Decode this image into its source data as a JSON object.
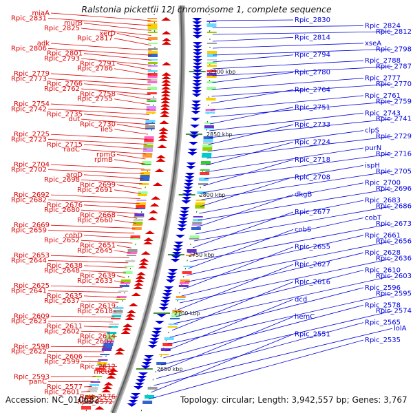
{
  "title": "Ralstonia pickettii 12J chromosome 1, complete sequence",
  "accession": "Accession: NC_010682",
  "summary": "Topology: circular; Length: 3,942,557 bp; Genes: 3,767",
  "colors": {
    "forward": "#dd0000",
    "reverse": "#0000dd",
    "tick": "#006600",
    "backbone": "#888888"
  },
  "kbp_marks": [
    "2900 kbp",
    "2850 kbp",
    "2800 kbp",
    "2750 kbp",
    "2700 kbp",
    "2650 kbp"
  ],
  "left_labels": [
    "miaA",
    "Rpic_2831",
    "murB",
    "Rpic_2825",
    "xerD",
    "Rpic_2817",
    "adk",
    "Rpic_2806",
    "Rpic_2801",
    "Rpic_2793",
    "Rpic_2791",
    "Rpic_2786",
    "Rpic_2779",
    "Rpic_2773",
    "Rpic_2766",
    "Rpic_2762",
    "Rpic_2758",
    "Rpic_2755",
    "Rpic_2754",
    "Rpic_2742",
    "Rpic_2735",
    "dut",
    "Rpic_2730",
    "ileS",
    "Rpic_2725",
    "Rpic_2723",
    "Rpic_2715",
    "radC",
    "rpmG",
    "rpmB",
    "Rpic_2704",
    "Rpic_2702",
    "argD",
    "Rpic_2698",
    "Rpic_2699",
    "Rpic_2691",
    "Rpic_2692",
    "Rpic_2682",
    "Rpic_2676",
    "Rpic_2680",
    "Rpic_2668",
    "Rpic_2660",
    "Rpic_2669",
    "Rpic_2659",
    "cobD",
    "Rpic_2652",
    "Rpic_2651",
    "Rpic_2645",
    "Rpic_2653",
    "Rpic_2644",
    "Rpic_2638",
    "Rpic_2648",
    "Rpic_2639",
    "Rpic_2633",
    "Rpic_2625",
    "Rpic_2641",
    "Rpic_2635",
    "Rpic_2637",
    "Rpic_2619",
    "Rpic_2618",
    "Rpic_2609",
    "Rpic_2623",
    "Rpic_2611",
    "Rpic_2602",
    "Rpic_2614",
    "Rpic_2607",
    "Rpic_2598",
    "Rpic_2622",
    "Rpic_2606",
    "Rpic_2599",
    "Rpic_2612",
    "metG",
    "Rpic_2593",
    "panC",
    "Rpic_2577",
    "Rpic_2601",
    "Rpic_2576",
    "Rpic_2572"
  ],
  "right_labels": [
    "Rpic_2830",
    "Rpic_2824",
    "Rpic_2812",
    "Rpic_2814",
    "xseA",
    "Rpic_2798",
    "Rpic_2794",
    "Rpic_2788",
    "Rpic_2787",
    "Rpic_2780",
    "Rpic_2777",
    "Rpic_2770",
    "Rpic_2764",
    "Rpic_2761",
    "Rpic_2759",
    "Rpic_2751",
    "Rpic_2743",
    "Rpic_2741",
    "Rpic_2733",
    "clpS",
    "Rpic_2729",
    "Rpic_2724",
    "purN",
    "Rpic_2716",
    "Rpic_2718",
    "ispH",
    "Rpic_2705",
    "Rpic_2708",
    "Rpic_2700",
    "Rpic_2696",
    "dkgB",
    "Rpic_2683",
    "Rpic_2686",
    "Rpic_2677",
    "cobT",
    "Rpic_2673",
    "cobS",
    "Rpic_2661",
    "Rpic_2656",
    "Rpic_2655",
    "Rpic_2628",
    "Rpic_2636",
    "Rpic_2627",
    "Rpic_2610",
    "Rpic_2603",
    "Rpic_2616",
    "Rpic_2596",
    "Rpic_2595",
    "dcd",
    "Rpic_2578",
    "Rpic_2574",
    "hemC",
    "Rpic_2565",
    "lolA",
    "Rpic_2551",
    "Rpic_2535"
  ]
}
